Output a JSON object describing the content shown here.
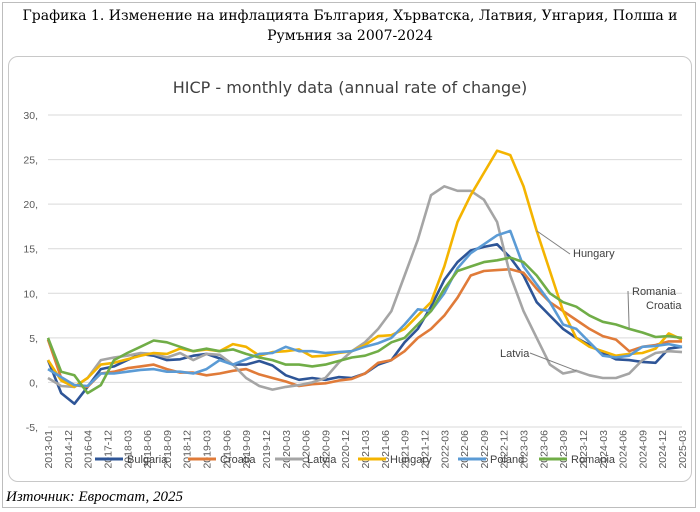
{
  "figure": {
    "caption": "Графика 1. Изменение на инфлацията България, Хърватска, Латвия, Унгария, Полша и Румъния за 2007-2024",
    "source": "Източник: Евростат, 2025"
  },
  "chart_data": {
    "type": "line",
    "title": "HICP - monthly data (annual rate of change)",
    "xlabel": "",
    "ylabel": "",
    "ylim": [
      -5,
      30
    ],
    "y_ticks": [
      -5,
      0,
      5,
      10,
      15,
      20,
      25,
      30
    ],
    "y_tick_labels": [
      "-5,",
      "0,",
      "5,",
      "10,",
      "15,",
      "20,",
      "25,",
      "30,"
    ],
    "x_tick_labels": [
      "2013-01",
      "2014-12",
      "2016-04",
      "2017-12",
      "2018-03",
      "2018-06",
      "2018-09",
      "2018-12",
      "2019-03",
      "2019-06",
      "2019-09",
      "2019-12",
      "2020-03",
      "2020-06",
      "2020-09",
      "2020-12",
      "2021-03",
      "2021-06",
      "2021-09",
      "2021-12",
      "2022-03",
      "2022-06",
      "2022-09",
      "2022-12",
      "2023-03",
      "2023-06",
      "2023-09",
      "2023-12",
      "2024-03",
      "2024-06",
      "2024-09",
      "2024-12",
      "2025-03"
    ],
    "grid": true,
    "legend_position": "bottom",
    "annotations": [
      {
        "text": "Hungary",
        "series": "Hungary"
      },
      {
        "text": "Romania",
        "series": "Romania"
      },
      {
        "text": "Croatia",
        "series": "Croatia"
      },
      {
        "text": "Latvia",
        "series": "Latvia"
      }
    ],
    "series": [
      {
        "name": "Bulgaria",
        "color": "#2e5597",
        "values": [
          2.5,
          -1.2,
          -2.4,
          -0.5,
          1.5,
          1.8,
          2.5,
          3.2,
          3.0,
          2.5,
          2.6,
          3.0,
          3.2,
          2.7,
          2.0,
          2.0,
          2.4,
          1.9,
          0.8,
          0.3,
          0.5,
          0.3,
          0.6,
          0.5,
          1.0,
          2.0,
          2.5,
          4.5,
          6.0,
          8.5,
          11.5,
          13.5,
          14.8,
          15.2,
          15.5,
          14.0,
          12.0,
          9.0,
          7.5,
          6.0,
          5.0,
          4.2,
          3.3,
          2.6,
          2.5,
          2.3,
          2.2,
          3.8,
          4.0
        ]
      },
      {
        "name": "Croatia",
        "color": "#e07b39",
        "values": [
          4.8,
          0.5,
          -0.3,
          -0.5,
          1.0,
          1.2,
          1.6,
          1.8,
          2.0,
          1.5,
          1.1,
          1.1,
          0.8,
          1.0,
          1.3,
          1.5,
          0.9,
          0.5,
          0.1,
          -0.4,
          -0.2,
          -0.1,
          0.2,
          0.4,
          1.0,
          2.2,
          2.5,
          3.5,
          5.0,
          6.0,
          7.5,
          9.5,
          12.0,
          12.5,
          12.6,
          12.7,
          12.3,
          10.5,
          9.0,
          8.0,
          7.0,
          6.0,
          5.2,
          4.8,
          3.5,
          4.0,
          4.2,
          4.6,
          4.6
        ]
      },
      {
        "name": "Latvia",
        "color": "#a5a5a5",
        "values": [
          0.5,
          -0.4,
          -0.5,
          0.5,
          2.5,
          2.8,
          3.0,
          3.3,
          3.2,
          2.8,
          3.3,
          2.5,
          3.2,
          3.1,
          2.0,
          0.5,
          -0.4,
          -0.8,
          -0.5,
          -0.3,
          0.0,
          0.5,
          2.2,
          3.5,
          4.5,
          6.0,
          8.0,
          12.0,
          16.0,
          21.0,
          22.0,
          21.5,
          21.5,
          20.5,
          18.0,
          12.0,
          8.0,
          5.0,
          2.0,
          1.0,
          1.3,
          0.8,
          0.5,
          0.5,
          1.0,
          2.5,
          3.3,
          3.5,
          3.4
        ]
      },
      {
        "name": "Hungary",
        "color": "#f4b400",
        "values": [
          2.5,
          0.2,
          -0.5,
          0.5,
          2.0,
          2.2,
          2.6,
          3.0,
          3.3,
          3.2,
          3.8,
          3.5,
          3.7,
          3.5,
          4.3,
          4.0,
          3.0,
          3.4,
          3.5,
          3.7,
          2.9,
          3.0,
          3.3,
          3.5,
          4.2,
          5.2,
          5.3,
          6.0,
          7.5,
          9.0,
          13.0,
          18.0,
          21.0,
          23.5,
          26.0,
          25.5,
          22.0,
          17.0,
          12.5,
          8.0,
          5.0,
          4.0,
          3.5,
          3.0,
          3.2,
          3.3,
          3.8,
          5.5,
          4.8
        ]
      },
      {
        "name": "Poland",
        "color": "#5b9bd5",
        "values": [
          1.5,
          0.6,
          -0.3,
          -0.4,
          1.0,
          1.0,
          1.2,
          1.4,
          1.5,
          1.2,
          1.2,
          1.0,
          1.5,
          2.5,
          2.0,
          2.6,
          3.2,
          3.3,
          4.0,
          3.5,
          3.5,
          3.3,
          3.4,
          3.5,
          4.0,
          4.4,
          5.0,
          6.5,
          8.2,
          8.0,
          10.0,
          12.8,
          14.5,
          15.5,
          16.5,
          17.0,
          13.0,
          11.0,
          9.0,
          6.5,
          6.0,
          4.5,
          3.0,
          2.8,
          3.0,
          4.0,
          4.1,
          4.3,
          4.0
        ]
      },
      {
        "name": "Romania",
        "color": "#70ad47",
        "values": [
          5.0,
          1.2,
          0.8,
          -1.2,
          -0.3,
          2.5,
          3.3,
          4.0,
          4.7,
          4.5,
          4.0,
          3.5,
          3.8,
          3.5,
          3.7,
          3.2,
          2.8,
          2.5,
          2.0,
          2.0,
          1.8,
          2.0,
          2.4,
          2.8,
          3.0,
          3.5,
          4.5,
          5.0,
          6.5,
          8.0,
          10.5,
          12.5,
          13.0,
          13.5,
          13.7,
          14.0,
          13.5,
          12.0,
          10.0,
          9.0,
          8.5,
          7.5,
          6.8,
          6.5,
          6.0,
          5.6,
          5.1,
          5.2,
          5.0
        ]
      }
    ]
  }
}
